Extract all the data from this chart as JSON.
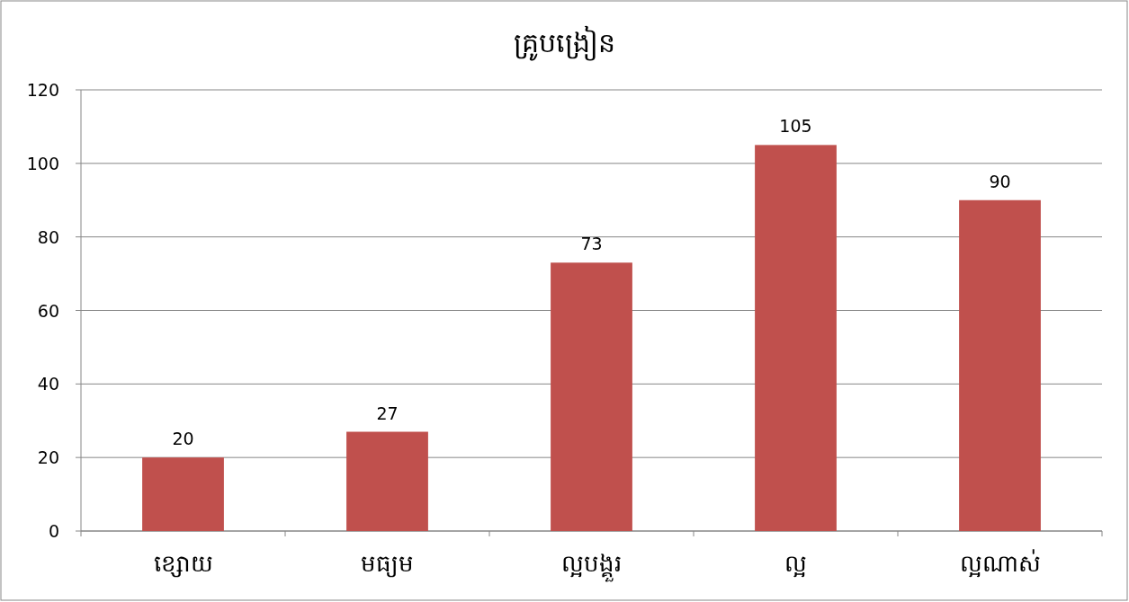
{
  "chart_data": {
    "type": "bar",
    "title": "គ្រូបង្រៀន",
    "categories": [
      "ខ្សោយ",
      "មធ្យម",
      "ល្អបង្គួរ",
      "ល្អ",
      "ល្អណាស់"
    ],
    "values": [
      20,
      27,
      73,
      105,
      90
    ],
    "color": "#c0504d",
    "ylim": [
      0,
      120
    ],
    "yticks": [
      0,
      20,
      40,
      60,
      80,
      100,
      120
    ],
    "grid": "y",
    "data_labels": true
  }
}
